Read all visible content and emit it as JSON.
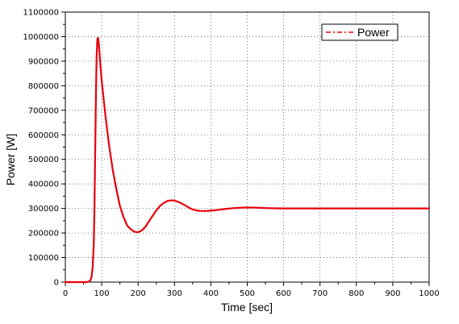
{
  "chart_data": {
    "type": "line",
    "title": "",
    "xlabel": "Time [sec]",
    "ylabel": "Power [W]",
    "xlim": [
      0,
      1000
    ],
    "ylim": [
      0,
      1100000
    ],
    "x_ticks": [
      "0",
      "100",
      "200",
      "300",
      "400",
      "500",
      "600",
      "700",
      "800",
      "900",
      "1000"
    ],
    "y_ticks": [
      "0",
      "100000",
      "200000",
      "300000",
      "400000",
      "500000",
      "600000",
      "700000",
      "800000",
      "900000",
      "1000000",
      "1100000"
    ],
    "grid": true,
    "legend_position": "top-right",
    "series": [
      {
        "name": "Power",
        "color": "#e8000b",
        "x": [
          0,
          60,
          68,
          72,
          75,
          78,
          80,
          82,
          84,
          86,
          88,
          90,
          92,
          94,
          96,
          100,
          110,
          120,
          130,
          140,
          150,
          160,
          170,
          180,
          190,
          200,
          210,
          220,
          230,
          240,
          250,
          260,
          270,
          280,
          290,
          300,
          310,
          320,
          330,
          340,
          350,
          360,
          370,
          380,
          390,
          400,
          420,
          440,
          460,
          480,
          500,
          520,
          540,
          560,
          580,
          600,
          650,
          700,
          800,
          900,
          1000
        ],
        "y": [
          0,
          0,
          5000,
          20000,
          60000,
          150000,
          300000,
          520000,
          750000,
          920000,
          990000,
          995000,
          970000,
          930000,
          890000,
          820000,
          680000,
          560000,
          460000,
          380000,
          310000,
          265000,
          230000,
          215000,
          205000,
          203000,
          210000,
          225000,
          248000,
          270000,
          292000,
          310000,
          322000,
          330000,
          333000,
          332000,
          327000,
          320000,
          312000,
          303000,
          296000,
          292000,
          290000,
          289500,
          290000,
          291000,
          294000,
          298000,
          301000,
          303000,
          304000,
          303500,
          302000,
          301000,
          300500,
          300000,
          300000,
          300000,
          300000,
          300000,
          300000
        ]
      }
    ]
  }
}
